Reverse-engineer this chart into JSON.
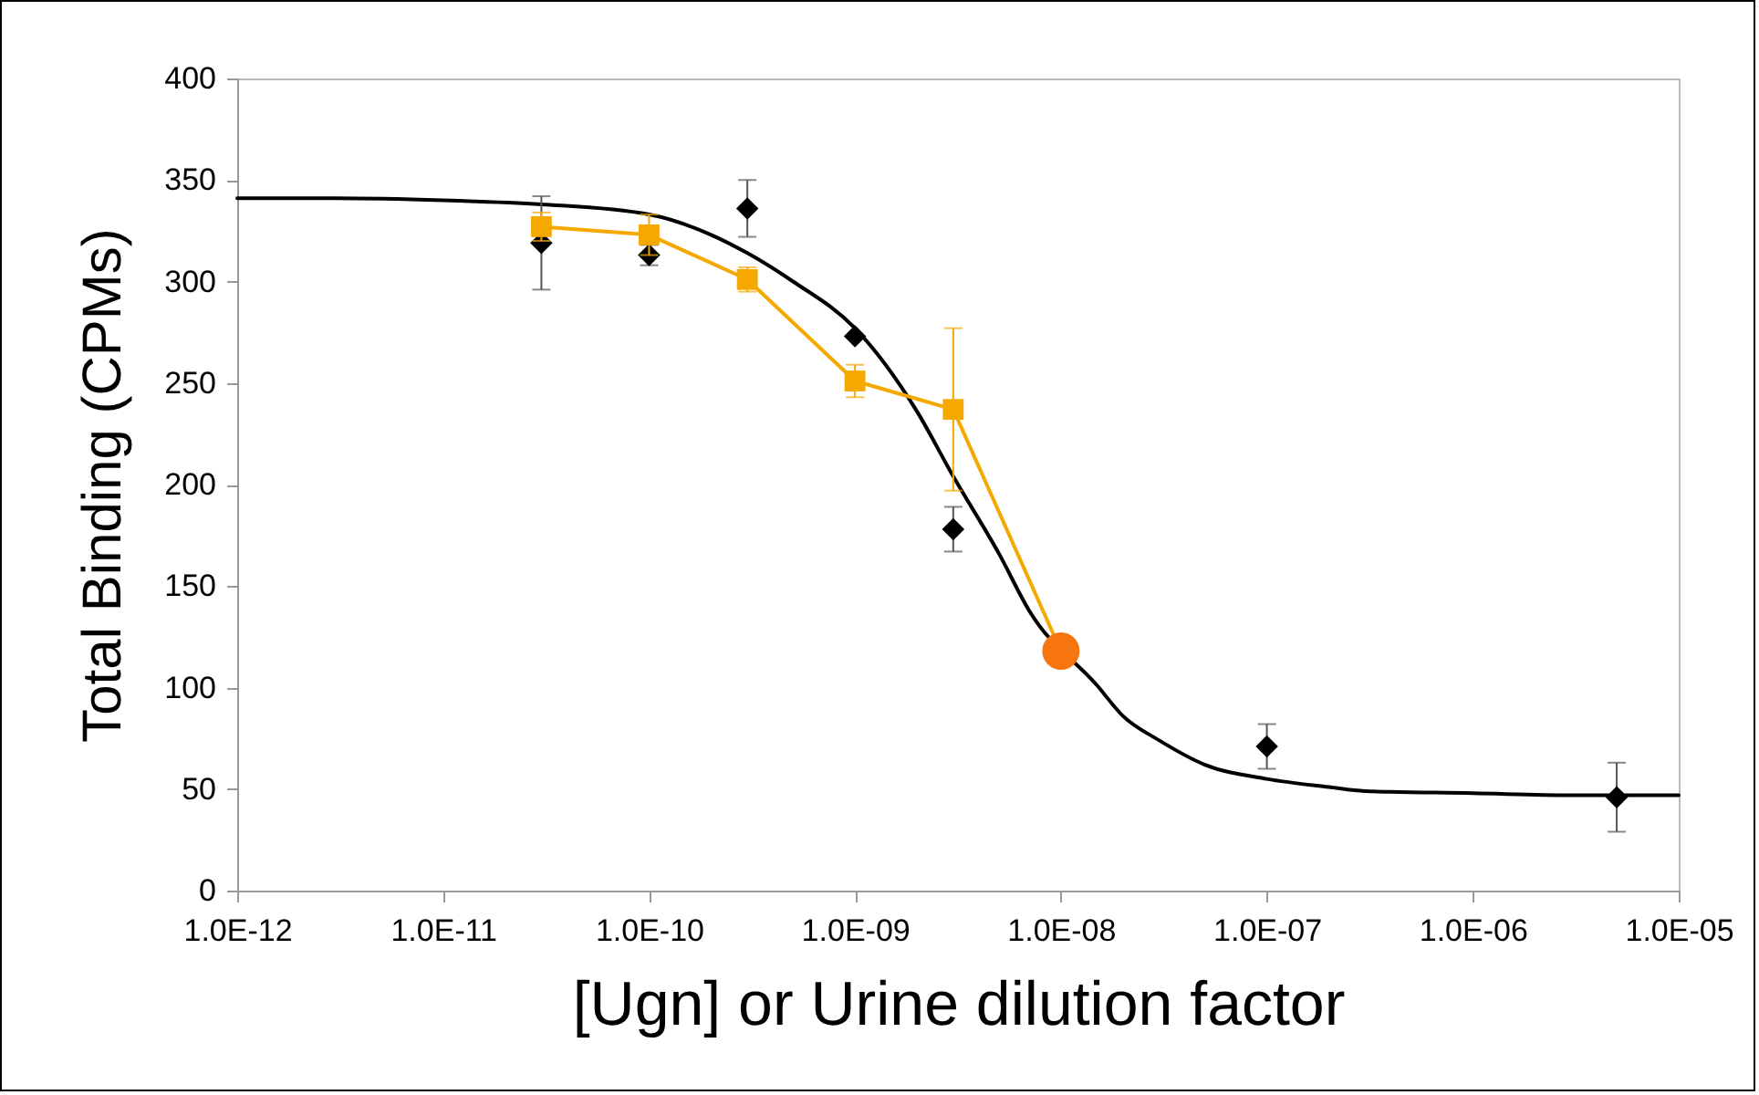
{
  "chart_data": {
    "type": "scatter",
    "xlabel": "[Ugn] or Urine dilution factor",
    "ylabel": "Total Binding (CPMs)",
    "log": "x",
    "grid": false,
    "xlim": [
      1e-12,
      1e-05
    ],
    "xticks": [
      {
        "value": 1e-12,
        "label": "1.0E-12"
      },
      {
        "value": 1e-11,
        "label": "1.0E-11"
      },
      {
        "value": 1e-10,
        "label": "1.0E-10"
      },
      {
        "value": 1e-09,
        "label": "1.0E-09"
      },
      {
        "value": 1e-08,
        "label": "1.0E-08"
      },
      {
        "value": 1e-07,
        "label": "1.0E-07"
      },
      {
        "value": 1e-06,
        "label": "1.0E-06"
      },
      {
        "value": 1e-05,
        "label": "1.0E-05"
      }
    ],
    "ylim": [
      0,
      400
    ],
    "yticks": [
      0,
      50,
      100,
      150,
      200,
      250,
      300,
      350,
      400
    ],
    "series": [
      {
        "type": "line",
        "marker": "none",
        "color": "#000000",
        "x": [
          1e-12,
          3e-12,
          1e-11,
          3e-11,
          1e-10,
          2e-10,
          3e-10,
          5e-10,
          1e-09,
          2e-09,
          3e-09,
          5e-09,
          7e-09,
          1.5e-08,
          2e-08,
          3e-08,
          5e-08,
          1e-07,
          2e-07,
          3e-07,
          1e-06,
          3e-06,
          1e-05
        ],
        "values": [
          341,
          341,
          340,
          338,
          333,
          323,
          314,
          300,
          277,
          236,
          204,
          166,
          138,
          101,
          86,
          74,
          62,
          55,
          51,
          49,
          48,
          47,
          47
        ]
      },
      {
        "marker": "diamond",
        "color": "#000000",
        "x": [
          3e-11,
          1e-10,
          3e-10,
          1e-09,
          3e-09,
          1e-08,
          1e-07,
          5e-06
        ],
        "values": [
          319,
          313,
          336,
          273,
          178,
          null,
          71,
          46
        ],
        "errors": [
          23,
          5,
          14,
          null,
          11,
          null,
          11,
          17
        ]
      },
      {
        "type": "line",
        "marker": "square",
        "color": "#f5a800",
        "x": [
          3e-11,
          1e-10,
          3e-10,
          1e-09,
          3e-09,
          1e-08
        ],
        "values": [
          327,
          323,
          301,
          251,
          237,
          118
        ],
        "errors": [
          7,
          10,
          6,
          8,
          40,
          null
        ]
      },
      {
        "marker": "circle",
        "color": "#f7750f",
        "x": [
          1e-08
        ],
        "values": [
          118
        ]
      }
    ]
  }
}
